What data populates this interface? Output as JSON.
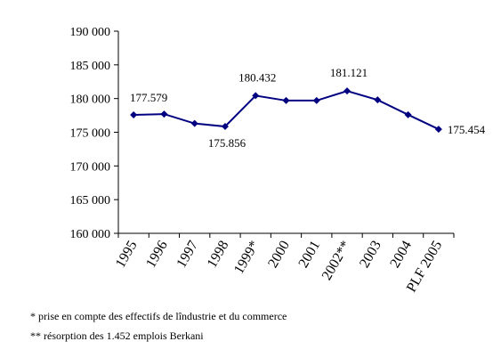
{
  "chart_data": {
    "type": "line",
    "title": "",
    "xlabel": "",
    "ylabel": "",
    "categories": [
      "1995",
      "1996",
      "1997",
      "1998",
      "1999*",
      "2000",
      "2001",
      "2002**",
      "2003",
      "2004",
      "PLF 2005"
    ],
    "series": [
      {
        "values": [
          177579,
          177700,
          176300,
          175856,
          180432,
          179700,
          179700,
          181121,
          179800,
          177600,
          175454
        ],
        "color": "#000080"
      }
    ],
    "data_labels": [
      {
        "index": 0,
        "text": "177.579"
      },
      {
        "index": 3,
        "text": "175.856"
      },
      {
        "index": 4,
        "text": "180.432"
      },
      {
        "index": 7,
        "text": "181.121"
      },
      {
        "index": 10,
        "text": "175.454"
      }
    ],
    "ylim": [
      160000,
      190000
    ],
    "yticks": [
      160000,
      165000,
      170000,
      175000,
      180000,
      185000,
      190000
    ],
    "ytick_labels": [
      "160 000",
      "165 000",
      "170 000",
      "175 000",
      "180 000",
      "185 000",
      "190 000"
    ],
    "grid": false,
    "legend": "none"
  },
  "footnotes": [
    "* prise en compte des effectifs de lîndustrie et du commerce",
    "** résorption des 1.452 emplois Berkani"
  ]
}
